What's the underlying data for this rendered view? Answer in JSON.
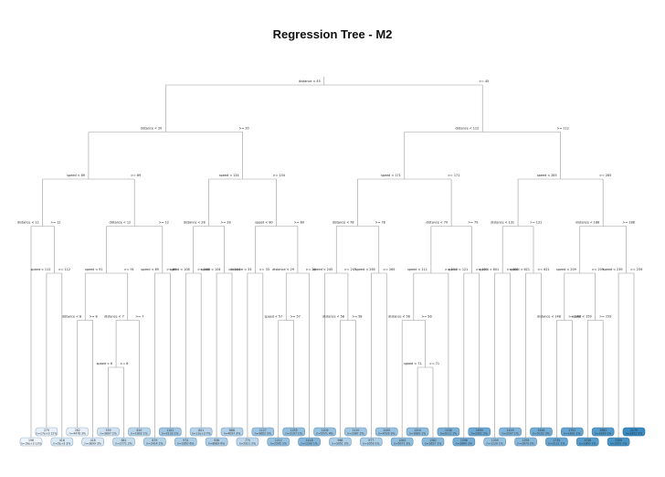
{
  "title": "Regression Tree - M2",
  "root": {
    "yes": "distance < 45",
    "no": ">= 45",
    "left": {
      "yes": "distance < 20",
      "no": ">= 20",
      "left": {
        "yes": "speed < 89",
        "no": ">= 89",
        "left": {
          "yes": "distance < 12",
          "no": ">= 12",
          "left": {
            "leaf": {
              "line1": "196",
              "line2": "n=19e+3 13%"
            }
          },
          "right": {
            "yes": "speed < 112",
            "no": ">= 112",
            "left": {
              "leaf": {
                "line1": "279",
                "line2": "n=17e+3 12%"
              }
            },
            "right": {
              "leaf": {
                "line1": "416",
                "line2": "n=5e+3 3%"
              }
            }
          }
        },
        "right": {
          "yes": "distance < 12",
          "no": ">= 12",
          "left": {
            "yes": "speed < 91",
            "no": ">= 91",
            "left": {
              "yes": "distance < 8",
              "no": ">= 8",
              "left": {
                "leaf": {
                  "line1": "282",
                  "line2": "n=4478 3%"
                }
              },
              "right": {
                "leaf": {
                  "line1": "418",
                  "line2": "n=3899 3%"
                }
              }
            },
            "right": {
              "yes": "distance < 7",
              "no": ">= 7",
              "left": {
                "yes": "speed < 6",
                "no": ">= 6",
                "left": {
                  "leaf": {
                    "line1": "559",
                    "line2": "n=3697 2%"
                  }
                },
                "right": {
                  "leaf": {
                    "line1": "681",
                    "line2": "n=2771 2%"
                  }
                }
              },
              "right": {
                "leaf": {
                  "line1": "810",
                  "line2": "n=1802 1%"
                }
              }
            }
          },
          "right": {
            "yes": "speed < 69",
            "no": ">= 69",
            "left": {
              "leaf": {
                "line1": "879",
                "line2": "n=2414 2%"
              }
            },
            "right": {
              "leaf": {
                "line1": "1102",
                "line2": "n=2133 1%"
              }
            }
          }
        }
      },
      "right": {
        "yes": "speed < 134",
        "no": ">= 134",
        "left": {
          "yes": "distance < 28",
          "no": ">= 28",
          "left": {
            "yes": "speed < 108",
            "no": ">= 108",
            "left": {
              "leaf": {
                "line1": "974",
                "line2": "n=9350 6%"
              }
            },
            "right": {
              "leaf": {
                "line1": "841",
                "line2": "n=11e+3 7%"
              }
            }
          },
          "right": {
            "yes": "speed < 104",
            "no": ">= 104",
            "left": {
              "leaf": {
                "line1": "936",
                "line2": "n=8989 6%"
              }
            },
            "right": {
              "leaf": {
                "line1": "888",
                "line2": "n=4097 3%"
              }
            }
          }
        },
        "right": {
          "yes": "speed < 80",
          "no": ">= 80",
          "left": {
            "yes": "distance < 33",
            "no": ">= 33",
            "left": {
              "leaf": {
                "line1": "770",
                "line2": "n=2921 2%"
              }
            },
            "right": {
              "leaf": {
                "line1": "1127",
                "line2": "n=3602 2%"
              }
            }
          },
          "right": {
            "yes": "distance < 29",
            "no": ">= 29",
            "left": {
              "yes": "speed < 57",
              "no": ">= 57",
              "left": {
                "leaf": {
                  "line1": "1212",
                  "line2": "n=2595 2%"
                }
              },
              "right": {
                "leaf": {
                  "line1": "1253",
                  "line2": "n=2197 1%"
                }
              }
            },
            "right": {
              "leaf": {
                "line1": "1418",
                "line2": "n=1299 1%"
              }
            }
          }
        }
      }
    },
    "right": {
      "yes": "distance < 112",
      "no": ">= 112",
      "left": {
        "yes": "speed < 171",
        "no": ">= 171",
        "left": {
          "yes": "distance < 78",
          "no": ">= 78",
          "left": {
            "yes": "speed < 245",
            "no": ">= 245",
            "left": {
              "leaf": {
                "line1": "1209",
                "line2": "n=5571 4%"
              }
            },
            "right": {
              "yes": "distance < 58",
              "no": ">= 58",
              "left": {
                "leaf": {
                  "line1": "966",
                  "line2": "n=3051 2%"
                }
              },
              "right": {
                "leaf": {
                  "line1": "1110",
                  "line2": "n=2987 2%"
                }
              }
            }
          },
          "right": {
            "yes": "speed < 265",
            "no": ">= 265",
            "left": {
              "leaf": {
                "line1": "977",
                "line2": "n=2059 1%"
              }
            },
            "right": {
              "leaf": {
                "line1": "1200",
                "line2": "n=4516 3%"
              }
            }
          }
        },
        "right": {
          "yes": "distance < 79",
          "no": ">= 79",
          "left": {
            "yes": "speed < 111",
            "no": ">= 111",
            "left": {
              "yes": "distance < 56",
              "no": ">= 56",
              "left": {
                "leaf": {
                  "line1": "1264",
                  "line2": "n=5071 3%"
                }
              },
              "right": {
                "yes": "speed < 71",
                "no": ">= 71",
                "left": {
                  "leaf": {
                    "line1": "1310",
                    "line2": "n=1889 1%"
                  }
                },
                "right": {
                  "leaf": {
                    "line1": "1362",
                    "line2": "n=1657 1%"
                  }
                }
              }
            },
            "right": {
              "leaf": {
                "line1": "1536",
                "line2": "n=2011 1%"
              }
            }
          },
          "right": {
            "yes": "speed < 121",
            "no": ">= 121",
            "left": {
              "leaf": {
                "line1": "1596",
                "line2": "n=3660 2%"
              }
            },
            "right": {
              "leaf": {
                "line1": "1690",
                "line2": "n=2301 2%"
              }
            }
          }
        }
      },
      "right": {
        "yes": "speed < 285",
        "no": ">= 285",
        "left": {
          "yes": "distance < 131",
          "no": ">= 131",
          "left": {
            "yes": "speed < 601",
            "no": ">= 601",
            "left": {
              "leaf": {
                "line1": "1209",
                "line2": "n=1120 1%"
              }
            },
            "right": {
              "leaf": {
                "line1": "1459",
                "line2": "n=2207 1%"
              }
            }
          },
          "right": {
            "yes": "speed < 621",
            "no": ">= 621",
            "left": {
              "leaf": {
                "line1": "1395",
                "line2": "n=2679 2%"
              }
            },
            "right": {
              "leaf": {
                "line1": "1626",
                "line2": "n=5102 3%"
              }
            }
          }
        },
        "right": {
          "yes": "distance < 188",
          "no": ">= 188",
          "left": {
            "yes": "speed < 209",
            "no": ">= 209",
            "left": {
              "yes": "distance < 148",
              "no": ">= 148",
              "left": {
                "leaf": {
                  "line1": "1735",
                  "line2": "n=2121 1%"
                }
              },
              "right": {
                "leaf": {
                  "line1": "1791",
                  "line2": "n=1801 1%"
                }
              }
            },
            "right": {
              "yes": "speed < 159",
              "no": ">= 159",
              "left": {
                "leaf": {
                  "line1": "1938",
                  "line2": "n=1800 1%"
                }
              },
              "right": {
                "leaf": {
                  "line1": "1983",
                  "line2": "n=1699 1%"
                }
              }
            }
          },
          "right": {
            "yes": "speed < 239",
            "no": ">= 239",
            "left": {
              "leaf": {
                "line1": "2089",
                "line2": "n=1952 1%"
              }
            },
            "right": {
              "leaf": {
                "line1": "2279",
                "line2": "n=3301 2%"
              }
            }
          }
        }
      }
    }
  },
  "colors": {
    "leaf_low": "#eef4fb",
    "leaf_high": "#3a8bc2",
    "edge": "#9a9a9a",
    "stroke_low": "#9fb3c8",
    "stroke_high": "#2a6f9e"
  }
}
